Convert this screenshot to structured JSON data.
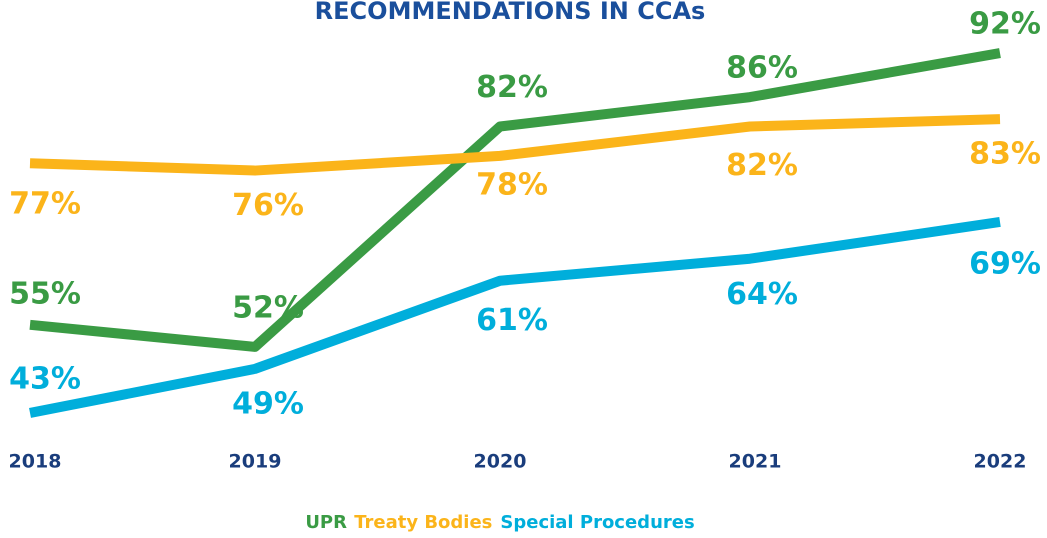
{
  "chart_data": {
    "type": "line",
    "title": "RECOMMENDATIONS IN CCAs",
    "categories": [
      "2018",
      "2019",
      "2020",
      "2021",
      "2022"
    ],
    "ylim": [
      40,
      95
    ],
    "series": [
      {
        "name": "UPR",
        "color": "#3a9b44",
        "values": [
          55,
          52,
          82,
          86,
          92
        ],
        "value_labels": [
          "55%",
          "52%",
          "82%",
          "86%",
          "92%"
        ]
      },
      {
        "name": "Treaty Bodies",
        "color": "#fbb41a",
        "values": [
          77,
          76,
          78,
          82,
          83
        ],
        "value_labels": [
          "77%",
          "76%",
          "78%",
          "82%",
          "83%"
        ]
      },
      {
        "name": "Special Procedures",
        "color": "#00aedb",
        "values": [
          43,
          49,
          61,
          64,
          69
        ],
        "value_labels": [
          "43%",
          "49%",
          "61%",
          "64%",
          "69%"
        ]
      }
    ]
  }
}
